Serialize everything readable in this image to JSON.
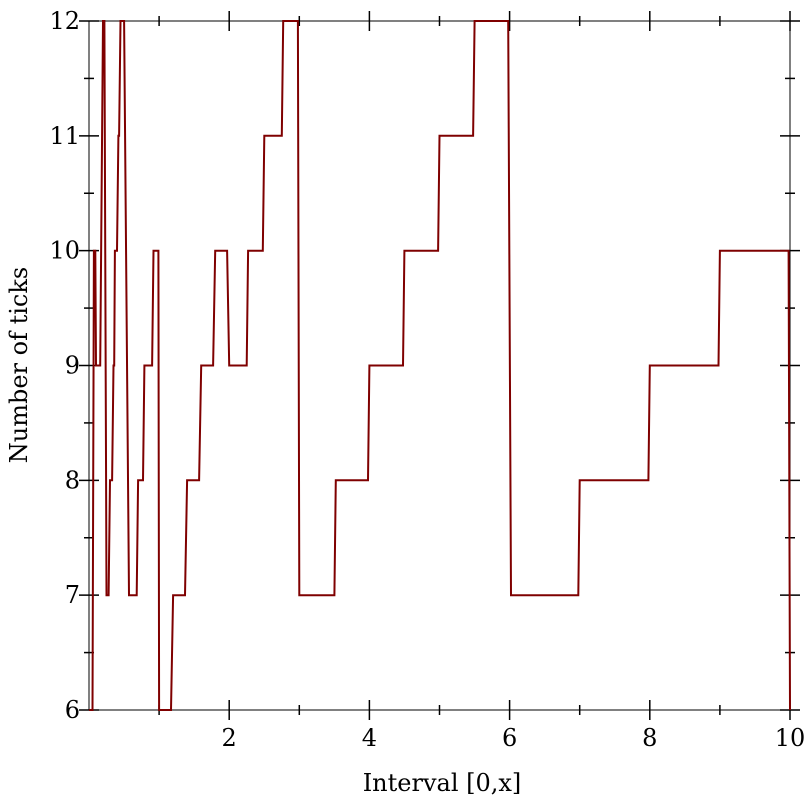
{
  "chart_data": {
    "type": "line",
    "title": "",
    "xlabel": "Interval [0,x]",
    "ylabel": "Number of ticks",
    "xlim": [
      0,
      10
    ],
    "ylim": [
      6,
      12
    ],
    "x_major_ticks": [
      2,
      4,
      6,
      8,
      10
    ],
    "x_tick_labels": [
      "2",
      "4",
      "6",
      "8",
      "10"
    ],
    "x_minor_ticks": [
      1,
      3,
      5,
      7,
      9
    ],
    "y_major_ticks": [
      6,
      7,
      8,
      9,
      10,
      11,
      12
    ],
    "y_tick_labels": [
      "6",
      "7",
      "8",
      "9",
      "10",
      "11",
      "12"
    ],
    "grid": false,
    "legend": "none",
    "colors": {
      "series": "#7f0000",
      "axis": "#000000",
      "background": "#ffffff"
    },
    "series": [
      {
        "values_xy": [
          [
            0.0,
            6
          ],
          [
            0.05,
            6
          ],
          [
            0.07,
            10
          ],
          [
            0.09,
            10
          ],
          [
            0.1,
            9
          ],
          [
            0.16,
            9
          ],
          [
            0.2,
            12
          ],
          [
            0.22,
            12
          ],
          [
            0.25,
            7
          ],
          [
            0.28,
            7
          ],
          [
            0.3,
            8
          ],
          [
            0.33,
            8
          ],
          [
            0.35,
            9
          ],
          [
            0.36,
            9
          ],
          [
            0.37,
            10
          ],
          [
            0.4,
            10
          ],
          [
            0.42,
            11
          ],
          [
            0.43,
            11
          ],
          [
            0.45,
            12
          ],
          [
            0.5,
            12
          ],
          [
            0.57,
            7
          ],
          [
            0.68,
            7
          ],
          [
            0.7,
            8
          ],
          [
            0.77,
            8
          ],
          [
            0.79,
            9
          ],
          [
            0.9,
            9
          ],
          [
            0.92,
            10
          ],
          [
            0.99,
            10
          ],
          [
            1.0,
            6
          ],
          [
            1.17,
            6
          ],
          [
            1.2,
            7
          ],
          [
            1.37,
            7
          ],
          [
            1.4,
            8
          ],
          [
            1.57,
            8
          ],
          [
            1.6,
            9
          ],
          [
            1.77,
            9
          ],
          [
            1.8,
            10
          ],
          [
            1.97,
            10
          ],
          [
            2.0,
            9
          ],
          [
            2.25,
            9
          ],
          [
            2.27,
            10
          ],
          [
            2.48,
            10
          ],
          [
            2.5,
            11
          ],
          [
            2.75,
            11
          ],
          [
            2.77,
            12
          ],
          [
            2.98,
            12
          ],
          [
            3.0,
            7
          ],
          [
            3.5,
            7
          ],
          [
            3.52,
            8
          ],
          [
            3.98,
            8
          ],
          [
            4.0,
            9
          ],
          [
            4.48,
            9
          ],
          [
            4.5,
            10
          ],
          [
            4.98,
            10
          ],
          [
            5.0,
            11
          ],
          [
            5.48,
            11
          ],
          [
            5.5,
            12
          ],
          [
            5.98,
            12
          ],
          [
            6.02,
            7
          ],
          [
            6.98,
            7
          ],
          [
            7.0,
            8
          ],
          [
            7.98,
            8
          ],
          [
            8.0,
            9
          ],
          [
            8.98,
            9
          ],
          [
            9.0,
            10
          ],
          [
            9.98,
            10
          ],
          [
            10.0,
            6
          ]
        ]
      }
    ]
  }
}
